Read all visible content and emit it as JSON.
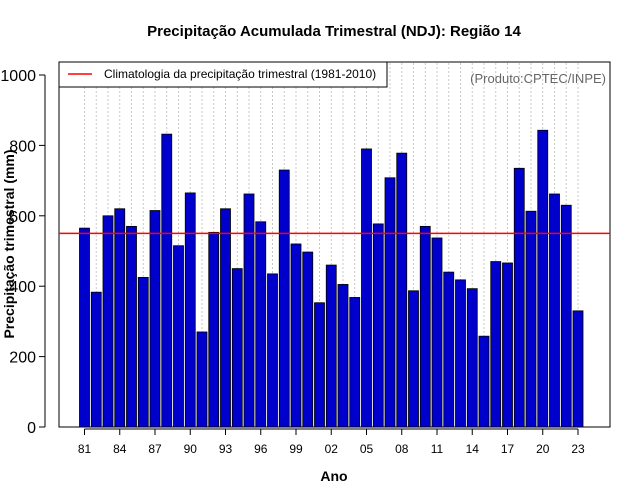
{
  "chart_data": {
    "type": "bar",
    "title": "Precipitação Acumulada Trimestral (NDJ): Região 14",
    "xlabel": "Ano",
    "ylabel": "Precipitação trimestral (mm)",
    "ylim": [
      0,
      1050
    ],
    "yticks": [
      "0",
      "200",
      "400",
      "600",
      "800",
      "1000"
    ],
    "credit": "(Produto:CPTEC/INPE)",
    "legend": {
      "label": "Climatologia da precipitação trimestral (1981-2010)",
      "position": "top-left"
    },
    "climatology": 550,
    "bar_color": "#0000cc",
    "climatology_color": "#ff0000",
    "categories": [
      "81",
      "82",
      "83",
      "84",
      "85",
      "86",
      "87",
      "88",
      "89",
      "90",
      "91",
      "92",
      "93",
      "94",
      "95",
      "96",
      "97",
      "98",
      "99",
      "00",
      "01",
      "02",
      "03",
      "04",
      "05",
      "06",
      "07",
      "08",
      "09",
      "10",
      "11",
      "12",
      "13",
      "14",
      "15",
      "16",
      "17",
      "18",
      "19",
      "20",
      "21",
      "22",
      "23"
    ],
    "tick_labels": [
      "81",
      "84",
      "87",
      "90",
      "93",
      "96",
      "99",
      "02",
      "05",
      "08",
      "11",
      "14",
      "17",
      "20",
      "23"
    ],
    "values": [
      565,
      383,
      600,
      620,
      570,
      425,
      615,
      832,
      515,
      665,
      270,
      553,
      620,
      450,
      662,
      583,
      435,
      730,
      520,
      497,
      353,
      460,
      405,
      368,
      790,
      577,
      708,
      778,
      387,
      570,
      537,
      440,
      418,
      393,
      258,
      470,
      466,
      735,
      613,
      843,
      662,
      630,
      330
    ]
  }
}
